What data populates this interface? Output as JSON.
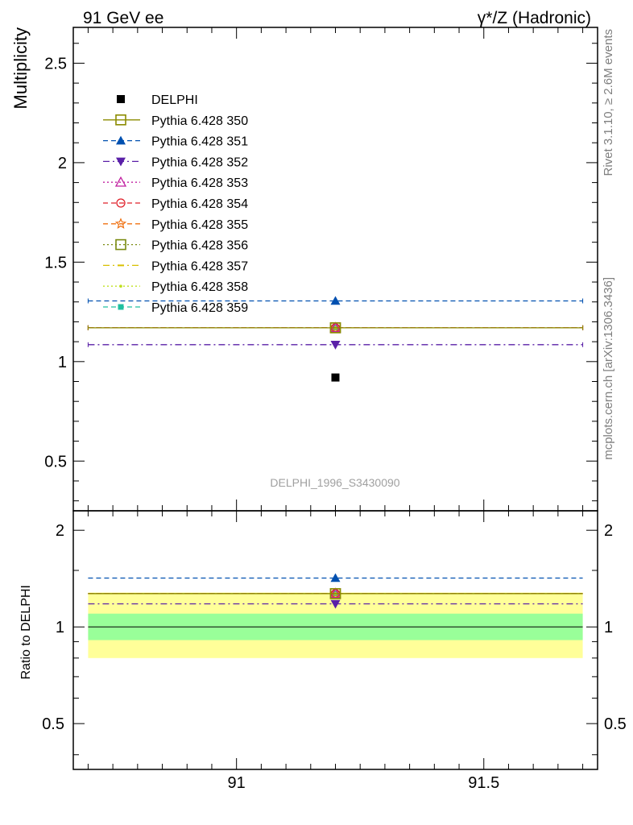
{
  "header": {
    "left": "91 GeV ee",
    "right": "γ*/Z (Hadronic)"
  },
  "side_text": {
    "rivet": "Rivet 3.1.10, ≥ 2.6M events",
    "mcplots": "mcplots.cern.ch [arXiv:1306.3436]"
  },
  "analysis_tag": "DELPHI_1996_S3430090",
  "chart_data": [
    {
      "type": "scatter",
      "panel": "main",
      "ylabel": "Multiplicity",
      "ylim": [
        0.25,
        2.68
      ],
      "xlim": [
        90.67,
        91.73
      ],
      "yticks": [
        "0.5",
        "1",
        "1.5",
        "2",
        "2.5"
      ],
      "ytick_values": [
        0.5,
        1.0,
        1.5,
        2.0,
        2.5
      ],
      "legend_position": "top-left",
      "x_center": 91.2,
      "x_range": [
        90.7,
        91.7
      ],
      "data": {
        "name": "DELPHI",
        "x": 91.2,
        "y": 0.92,
        "color": "#000000",
        "marker": "square-filled"
      },
      "series": [
        {
          "name": "Pythia 6.428 350",
          "y": 1.17,
          "color": "#8b8b00",
          "marker": "square-open",
          "dash": "solid"
        },
        {
          "name": "Pythia 6.428 351",
          "y": 1.305,
          "color": "#0050b0",
          "marker": "triangle-up-filled",
          "dash": "dashed"
        },
        {
          "name": "Pythia 6.428 352",
          "y": 1.085,
          "color": "#5a20a8",
          "marker": "triangle-down-filled",
          "dash": "dashdot"
        },
        {
          "name": "Pythia 6.428 353",
          "y": 1.17,
          "color": "#c020a0",
          "marker": "triangle-up-open",
          "dash": "dotted"
        },
        {
          "name": "Pythia 6.428 354",
          "y": 1.17,
          "color": "#e0202a",
          "marker": "circle-open",
          "dash": "dashed"
        },
        {
          "name": "Pythia 6.428 355",
          "y": 1.17,
          "color": "#f07010",
          "marker": "star-open",
          "dash": "dashed"
        },
        {
          "name": "Pythia 6.428 356",
          "y": 1.17,
          "color": "#7a8a10",
          "marker": "square-open",
          "dash": "dotted"
        },
        {
          "name": "Pythia 6.428 357",
          "y": 1.17,
          "color": "#d8c000",
          "marker": "dash",
          "dash": "dashdot"
        },
        {
          "name": "Pythia 6.428 358",
          "y": 1.17,
          "color": "#c0e020",
          "marker": "dot",
          "dash": "dotted"
        },
        {
          "name": "Pythia 6.428 359",
          "y": 1.17,
          "color": "#20c0a0",
          "marker": "square-small-filled",
          "dash": "dashed"
        }
      ]
    },
    {
      "type": "scatter",
      "panel": "ratio",
      "ylabel": "Ratio to DELPHI",
      "ylim": [
        0.36,
        2.3
      ],
      "log_y": true,
      "yticks": [
        "0.5",
        "1",
        "2"
      ],
      "ytick_values": [
        0.5,
        1.0,
        2.0
      ],
      "xticks": [
        "91",
        "91.5"
      ],
      "xtick_values": [
        91.0,
        91.5
      ],
      "bands": [
        {
          "name": "total-uncertainty",
          "low": 0.8,
          "high": 1.28,
          "color": "#ffff99"
        },
        {
          "name": "stat-uncertainty",
          "low": 0.91,
          "high": 1.1,
          "color": "#99ff99"
        }
      ],
      "ratio_values": [
        {
          "name": "Pythia 6.428 350",
          "y": 1.27
        },
        {
          "name": "Pythia 6.428 351",
          "y": 1.42
        },
        {
          "name": "Pythia 6.428 352",
          "y": 1.18
        },
        {
          "name": "Pythia 6.428 353",
          "y": 1.27
        },
        {
          "name": "Pythia 6.428 354",
          "y": 1.27
        },
        {
          "name": "Pythia 6.428 355",
          "y": 1.27
        },
        {
          "name": "Pythia 6.428 356",
          "y": 1.27
        },
        {
          "name": "Pythia 6.428 357",
          "y": 1.27
        },
        {
          "name": "Pythia 6.428 358",
          "y": 1.27
        },
        {
          "name": "Pythia 6.428 359",
          "y": 1.27
        }
      ]
    }
  ]
}
